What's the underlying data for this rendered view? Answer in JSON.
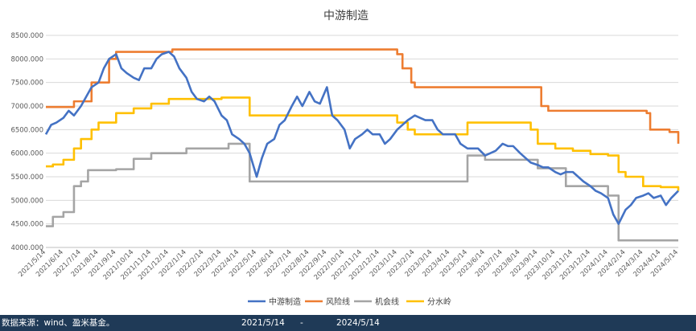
{
  "chart_data": {
    "type": "line",
    "title": "中游制造",
    "ylim": [
      4000,
      8500
    ],
    "y_ticks": [
      "8500.000",
      "8000.000",
      "7500.000",
      "7000.000",
      "6500.000",
      "6000.000",
      "5500.000",
      "5000.000",
      "4500.000",
      "4000.000"
    ],
    "x_ticks": [
      "2021/5/14",
      "2021/6/14",
      "2021/7/14",
      "2021/8/14",
      "2021/9/14",
      "2021/10/14",
      "2021/11/14",
      "2021/12/14",
      "2022/1/14",
      "2022/2/14",
      "2022/3/14",
      "2022/4/14",
      "2022/5/14",
      "2022/6/14",
      "2022/7/14",
      "2022/8/14",
      "2022/9/14",
      "2022/10/14",
      "2022/11/14",
      "2022/12/14",
      "2023/1/14",
      "2023/2/14",
      "2023/3/14",
      "2023/4/14",
      "2023/5/14",
      "2023/6/14",
      "2023/7/14",
      "2023/8/14",
      "2023/9/14",
      "2023/10/14",
      "2023/11/14",
      "2023/12/14",
      "2024/1/14",
      "2024/2/14",
      "2024/3/14",
      "2024/4/14",
      "2024/5/14"
    ],
    "grid": true,
    "legend_position": "bottom",
    "series": [
      {
        "name": "中游制造",
        "color": "#4472c4",
        "style": "line",
        "points": [
          [
            0,
            6400
          ],
          [
            0.3,
            6600
          ],
          [
            0.6,
            6650
          ],
          [
            1,
            6750
          ],
          [
            1.3,
            6900
          ],
          [
            1.6,
            6800
          ],
          [
            2,
            7000
          ],
          [
            2.3,
            7200
          ],
          [
            2.6,
            7400
          ],
          [
            3,
            7500
          ],
          [
            3.3,
            7800
          ],
          [
            3.6,
            8000
          ],
          [
            4,
            8100
          ],
          [
            4.3,
            7800
          ],
          [
            4.6,
            7700
          ],
          [
            5,
            7600
          ],
          [
            5.3,
            7550
          ],
          [
            5.6,
            7800
          ],
          [
            6,
            7800
          ],
          [
            6.3,
            8000
          ],
          [
            6.6,
            8100
          ],
          [
            7,
            8150
          ],
          [
            7.3,
            8050
          ],
          [
            7.6,
            7800
          ],
          [
            8,
            7600
          ],
          [
            8.3,
            7300
          ],
          [
            8.6,
            7150
          ],
          [
            9,
            7100
          ],
          [
            9.3,
            7200
          ],
          [
            9.6,
            7100
          ],
          [
            10,
            6800
          ],
          [
            10.3,
            6700
          ],
          [
            10.6,
            6400
          ],
          [
            11,
            6300
          ],
          [
            11.3,
            6200
          ],
          [
            11.6,
            6000
          ],
          [
            12,
            5500
          ],
          [
            12.3,
            5900
          ],
          [
            12.6,
            6200
          ],
          [
            13,
            6300
          ],
          [
            13.3,
            6600
          ],
          [
            13.6,
            6700
          ],
          [
            14,
            7000
          ],
          [
            14.3,
            7200
          ],
          [
            14.6,
            7000
          ],
          [
            15,
            7300
          ],
          [
            15.3,
            7100
          ],
          [
            15.6,
            7050
          ],
          [
            16,
            7400
          ],
          [
            16.3,
            6800
          ],
          [
            16.6,
            6700
          ],
          [
            17,
            6500
          ],
          [
            17.3,
            6100
          ],
          [
            17.6,
            6300
          ],
          [
            18,
            6400
          ],
          [
            18.3,
            6500
          ],
          [
            18.6,
            6400
          ],
          [
            19,
            6400
          ],
          [
            19.3,
            6200
          ],
          [
            19.6,
            6300
          ],
          [
            20,
            6500
          ],
          [
            20.3,
            6600
          ],
          [
            20.6,
            6700
          ],
          [
            21,
            6800
          ],
          [
            21.3,
            6750
          ],
          [
            21.6,
            6700
          ],
          [
            22,
            6700
          ],
          [
            22.3,
            6500
          ],
          [
            22.6,
            6400
          ],
          [
            23,
            6400
          ],
          [
            23.3,
            6400
          ],
          [
            23.6,
            6200
          ],
          [
            24,
            6100
          ],
          [
            24.3,
            6100
          ],
          [
            24.6,
            6100
          ],
          [
            25,
            5950
          ],
          [
            25.3,
            6000
          ],
          [
            25.6,
            6050
          ],
          [
            26,
            6200
          ],
          [
            26.3,
            6150
          ],
          [
            26.6,
            6150
          ],
          [
            27,
            6000
          ],
          [
            27.3,
            5900
          ],
          [
            27.6,
            5800
          ],
          [
            28,
            5750
          ],
          [
            28.3,
            5700
          ],
          [
            28.6,
            5700
          ],
          [
            29,
            5600
          ],
          [
            29.3,
            5550
          ],
          [
            29.6,
            5600
          ],
          [
            30,
            5600
          ],
          [
            30.3,
            5500
          ],
          [
            30.6,
            5400
          ],
          [
            31,
            5300
          ],
          [
            31.3,
            5200
          ],
          [
            31.6,
            5150
          ],
          [
            32,
            5050
          ],
          [
            32.3,
            4700
          ],
          [
            32.6,
            4500
          ],
          [
            33,
            4800
          ],
          [
            33.3,
            4900
          ],
          [
            33.6,
            5050
          ],
          [
            34,
            5100
          ],
          [
            34.3,
            5150
          ],
          [
            34.6,
            5050
          ],
          [
            35,
            5100
          ],
          [
            35.3,
            4900
          ],
          [
            35.6,
            5050
          ],
          [
            36,
            5200
          ]
        ]
      },
      {
        "name": "风险线",
        "color": "#ed7d31",
        "style": "step",
        "points": [
          [
            0,
            6980
          ],
          [
            1,
            6980
          ],
          [
            1.6,
            7100
          ],
          [
            2.6,
            7500
          ],
          [
            3.6,
            8000
          ],
          [
            4,
            8150
          ],
          [
            7,
            8150
          ],
          [
            7.2,
            8200
          ],
          [
            19.8,
            8200
          ],
          [
            20,
            8100
          ],
          [
            20.3,
            7800
          ],
          [
            20.8,
            7500
          ],
          [
            21,
            7400
          ],
          [
            28,
            7400
          ],
          [
            28.2,
            7000
          ],
          [
            28.6,
            6900
          ],
          [
            34.2,
            6850
          ],
          [
            34.4,
            6500
          ],
          [
            35.5,
            6450
          ],
          [
            36,
            6200
          ]
        ]
      },
      {
        "name": "机会线",
        "color": "#a5a5a5",
        "style": "step",
        "points": [
          [
            0,
            4450
          ],
          [
            0.4,
            4650
          ],
          [
            1,
            4750
          ],
          [
            1.6,
            5300
          ],
          [
            2,
            5400
          ],
          [
            2.4,
            5640
          ],
          [
            3.6,
            5640
          ],
          [
            4,
            5660
          ],
          [
            5,
            5880
          ],
          [
            5.8,
            5880
          ],
          [
            6,
            6000
          ],
          [
            8,
            6100
          ],
          [
            10,
            6100
          ],
          [
            10.4,
            6200
          ],
          [
            11,
            6200
          ],
          [
            11.6,
            5400
          ],
          [
            23.6,
            5400
          ],
          [
            24,
            5950
          ],
          [
            25,
            5860
          ],
          [
            26,
            5860
          ],
          [
            26.6,
            5860
          ],
          [
            27.8,
            5860
          ],
          [
            28,
            5680
          ],
          [
            29,
            5680
          ],
          [
            29.6,
            5300
          ],
          [
            32,
            5100
          ],
          [
            32.6,
            4150
          ],
          [
            36,
            4150
          ]
        ]
      },
      {
        "name": "分水岭",
        "color": "#ffc000",
        "style": "step",
        "points": [
          [
            0,
            5720
          ],
          [
            0.4,
            5760
          ],
          [
            1,
            5860
          ],
          [
            1.6,
            6100
          ],
          [
            2,
            6300
          ],
          [
            2.6,
            6500
          ],
          [
            3,
            6650
          ],
          [
            4,
            6850
          ],
          [
            5,
            6950
          ],
          [
            6,
            7050
          ],
          [
            7,
            7150
          ],
          [
            10,
            7180
          ],
          [
            11,
            7180
          ],
          [
            11.6,
            6800
          ],
          [
            19.6,
            6800
          ],
          [
            20,
            6650
          ],
          [
            20.6,
            6500
          ],
          [
            21,
            6400
          ],
          [
            23.6,
            6400
          ],
          [
            24,
            6650
          ],
          [
            26,
            6650
          ],
          [
            26.6,
            6650
          ],
          [
            27.6,
            6500
          ],
          [
            28,
            6200
          ],
          [
            29,
            6100
          ],
          [
            30,
            6050
          ],
          [
            31,
            5980
          ],
          [
            32,
            5950
          ],
          [
            32.6,
            5600
          ],
          [
            33,
            5500
          ],
          [
            34,
            5300
          ],
          [
            35,
            5280
          ],
          [
            36,
            5200
          ]
        ]
      }
    ]
  },
  "footer": {
    "source": "数据来源：wind、盈米基金。",
    "start_date": "2021/5/14",
    "dash": "-",
    "end_date": "2024/5/14"
  }
}
